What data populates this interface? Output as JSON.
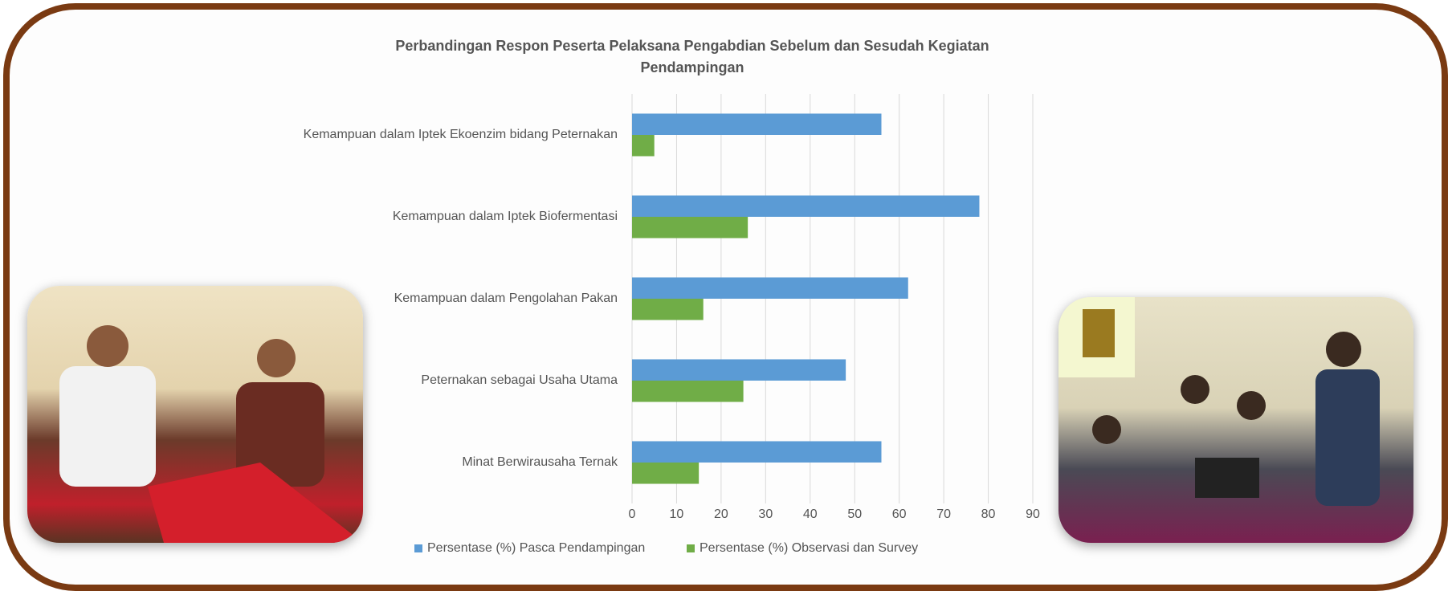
{
  "chart_data": {
    "type": "bar",
    "orientation": "horizontal",
    "title": "Perbandingan Respon Peserta Pelaksana Pengabdian Sebelum dan Sesudah Kegiatan Pendampingan",
    "categories": [
      "Kemampuan dalam Iptek Ekoenzim bidang Peternakan",
      "Kemampuan dalam Iptek Biofermentasi",
      "Kemampuan dalam Pengolahan Pakan",
      "Peternakan sebagai Usaha Utama",
      "Minat Berwirausaha Ternak"
    ],
    "series": [
      {
        "name": "Persentase (%) Pasca Pendampingan",
        "color": "#5b9bd5",
        "values": [
          56,
          78,
          62,
          48,
          56
        ]
      },
      {
        "name": "Persentase (%) Observasi dan Survey",
        "color": "#70ad47",
        "values": [
          5,
          26,
          16,
          25,
          15
        ]
      }
    ],
    "xlim": [
      0,
      90
    ],
    "xticks": [
      0,
      10,
      20,
      30,
      40,
      50,
      60,
      70,
      80,
      90
    ],
    "grid": true,
    "legend": "bottom"
  }
}
